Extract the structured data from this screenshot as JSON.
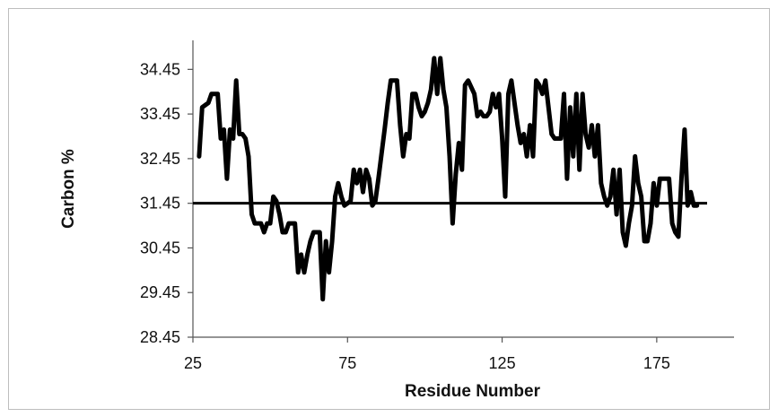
{
  "chart_data": {
    "type": "line",
    "xlabel": "Residue Number",
    "ylabel": "Carbon %",
    "xlim": [
      25,
      200
    ],
    "ylim": [
      28.45,
      35.1
    ],
    "x_ticks": [
      "25",
      "75",
      "125",
      "175"
    ],
    "y_ticks": [
      "28.45",
      "29.45",
      "30.45",
      "31.45",
      "32.45",
      "33.45",
      "34.45"
    ],
    "grid": false,
    "legend": "none",
    "reference_line": {
      "y": 31.45
    },
    "series": [
      {
        "color": "#000000",
        "points": [
          [
            27,
            32.5
          ],
          [
            28,
            33.6
          ],
          [
            30,
            33.7
          ],
          [
            31,
            33.9
          ],
          [
            33,
            33.9
          ],
          [
            34,
            32.9
          ],
          [
            35,
            33.1
          ],
          [
            36,
            32.0
          ],
          [
            37,
            33.1
          ],
          [
            38,
            32.9
          ],
          [
            39,
            34.2
          ],
          [
            40,
            33.0
          ],
          [
            41,
            33.0
          ],
          [
            42,
            32.9
          ],
          [
            43,
            32.5
          ],
          [
            44,
            31.2
          ],
          [
            45,
            31.0
          ],
          [
            46,
            31.0
          ],
          [
            47,
            31.0
          ],
          [
            48,
            30.8
          ],
          [
            49,
            31.0
          ],
          [
            50,
            31.0
          ],
          [
            51,
            31.6
          ],
          [
            52,
            31.5
          ],
          [
            53,
            31.2
          ],
          [
            54,
            30.8
          ],
          [
            55,
            30.8
          ],
          [
            56,
            31.0
          ],
          [
            57,
            31.0
          ],
          [
            58,
            31.0
          ],
          [
            59,
            29.9
          ],
          [
            60,
            30.3
          ],
          [
            61,
            29.9
          ],
          [
            62,
            30.3
          ],
          [
            63,
            30.6
          ],
          [
            64,
            30.8
          ],
          [
            66,
            30.8
          ],
          [
            67,
            29.3
          ],
          [
            68,
            30.6
          ],
          [
            69,
            29.9
          ],
          [
            70,
            30.6
          ],
          [
            71,
            31.6
          ],
          [
            72,
            31.9
          ],
          [
            73,
            31.6
          ],
          [
            74,
            31.4
          ],
          [
            76,
            31.5
          ],
          [
            77,
            32.2
          ],
          [
            78,
            31.9
          ],
          [
            79,
            32.2
          ],
          [
            80,
            31.7
          ],
          [
            81,
            32.2
          ],
          [
            82,
            32.0
          ],
          [
            83,
            31.4
          ],
          [
            84,
            31.5
          ],
          [
            85,
            32.0
          ],
          [
            87,
            33.1
          ],
          [
            88,
            33.7
          ],
          [
            89,
            34.2
          ],
          [
            91,
            34.2
          ],
          [
            92,
            33.2
          ],
          [
            93,
            32.5
          ],
          [
            94,
            33.0
          ],
          [
            95,
            32.9
          ],
          [
            96,
            33.9
          ],
          [
            97,
            33.9
          ],
          [
            98,
            33.6
          ],
          [
            99,
            33.4
          ],
          [
            100,
            33.5
          ],
          [
            101,
            33.7
          ],
          [
            102,
            34.0
          ],
          [
            103,
            34.7
          ],
          [
            104,
            33.9
          ],
          [
            105,
            34.7
          ],
          [
            106,
            34.0
          ],
          [
            107,
            33.6
          ],
          [
            108,
            32.5
          ],
          [
            109,
            31.0
          ],
          [
            110,
            32.1
          ],
          [
            111,
            32.8
          ],
          [
            112,
            32.2
          ],
          [
            113,
            34.1
          ],
          [
            114,
            34.2
          ],
          [
            116,
            33.9
          ],
          [
            117,
            33.4
          ],
          [
            118,
            33.5
          ],
          [
            119,
            33.4
          ],
          [
            120,
            33.4
          ],
          [
            121,
            33.5
          ],
          [
            122,
            33.9
          ],
          [
            123,
            33.6
          ],
          [
            124,
            33.9
          ],
          [
            125,
            32.9
          ],
          [
            126,
            31.6
          ],
          [
            127,
            33.9
          ],
          [
            128,
            34.2
          ],
          [
            130,
            33.2
          ],
          [
            131,
            32.8
          ],
          [
            132,
            33.0
          ],
          [
            133,
            32.5
          ],
          [
            134,
            33.2
          ],
          [
            135,
            32.5
          ],
          [
            136,
            34.2
          ],
          [
            137,
            34.1
          ],
          [
            138,
            33.9
          ],
          [
            139,
            34.2
          ],
          [
            141,
            33.0
          ],
          [
            142,
            32.9
          ],
          [
            143,
            32.9
          ],
          [
            144,
            32.9
          ],
          [
            145,
            33.9
          ],
          [
            146,
            32.0
          ],
          [
            147,
            33.6
          ],
          [
            148,
            32.5
          ],
          [
            149,
            33.9
          ],
          [
            150,
            32.2
          ],
          [
            151,
            33.9
          ],
          [
            152,
            33.0
          ],
          [
            153,
            32.7
          ],
          [
            154,
            33.2
          ],
          [
            155,
            32.5
          ],
          [
            156,
            33.2
          ],
          [
            157,
            31.9
          ],
          [
            158,
            31.6
          ],
          [
            159,
            31.4
          ],
          [
            160,
            31.6
          ],
          [
            161,
            32.2
          ],
          [
            162,
            31.2
          ],
          [
            163,
            32.2
          ],
          [
            164,
            30.8
          ],
          [
            165,
            30.5
          ],
          [
            166,
            31.0
          ],
          [
            167,
            31.4
          ],
          [
            168,
            32.5
          ],
          [
            169,
            31.9
          ],
          [
            170,
            31.6
          ],
          [
            171,
            30.6
          ],
          [
            172,
            30.6
          ],
          [
            173,
            31.0
          ],
          [
            174,
            31.9
          ],
          [
            175,
            31.4
          ],
          [
            176,
            32.0
          ],
          [
            177,
            32.0
          ],
          [
            178,
            32.0
          ],
          [
            179,
            32.0
          ],
          [
            180,
            31.0
          ],
          [
            181,
            30.8
          ],
          [
            182,
            30.7
          ],
          [
            183,
            32.0
          ],
          [
            184,
            33.1
          ],
          [
            185,
            31.4
          ],
          [
            186,
            31.7
          ],
          [
            187,
            31.4
          ],
          [
            188,
            31.4
          ]
        ]
      }
    ]
  }
}
